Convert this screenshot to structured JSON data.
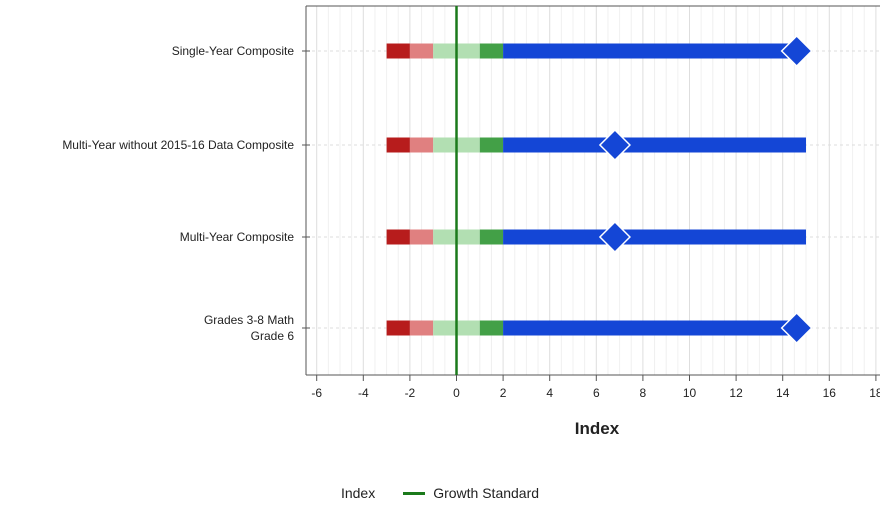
{
  "chart_data": {
    "type": "bar",
    "orientation": "horizontal",
    "title": "",
    "xlabel": "Index",
    "xlim": [
      -6.5,
      18
    ],
    "x_ticks": [
      -6,
      -4,
      -2,
      0,
      2,
      4,
      6,
      8,
      10,
      12,
      14,
      16,
      18
    ],
    "grid": true,
    "categories": [
      "Single-Year Composite",
      "Multi-Year without 2015-16 Data Composite",
      "Multi-Year Composite",
      "Grades 3-8 Math\nGrade 6"
    ],
    "bands": [
      {
        "from": -3,
        "to": -2,
        "color": "#b71c1c"
      },
      {
        "from": -2,
        "to": -1,
        "color": "#e08080"
      },
      {
        "from": -1,
        "to": 1,
        "color": "#b2dfb2"
      },
      {
        "from": 1,
        "to": 2,
        "color": "#43a047"
      }
    ],
    "bar_start": 2,
    "bar_ends": [
      14.6,
      15,
      15,
      14.6
    ],
    "bar_color": "#1446d6",
    "index_values": [
      14.6,
      6.8,
      6.8,
      14.6
    ],
    "marker_color": "#1446d6",
    "growth_standard": 0,
    "growth_standard_color": "#1b7a1b",
    "legend": {
      "position": "bottom",
      "entries": [
        {
          "name": "Index"
        },
        {
          "name": "Growth Standard",
          "color": "#1b7a1b"
        }
      ]
    }
  }
}
